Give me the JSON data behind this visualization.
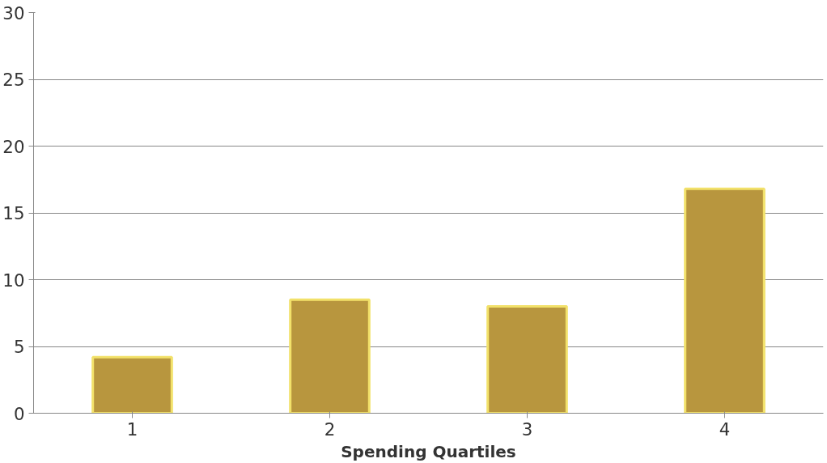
{
  "chart_data": {
    "type": "bar",
    "xlabel": "Spending Quartiles",
    "categories": [
      "1",
      "2",
      "3",
      "4"
    ],
    "values": [
      4.2,
      8.5,
      8.0,
      16.8
    ],
    "color": "#b8963e",
    "ylim": [
      0,
      30
    ],
    "yticks": [
      0,
      5,
      10,
      15,
      20,
      25,
      30
    ],
    "grid": "y"
  }
}
